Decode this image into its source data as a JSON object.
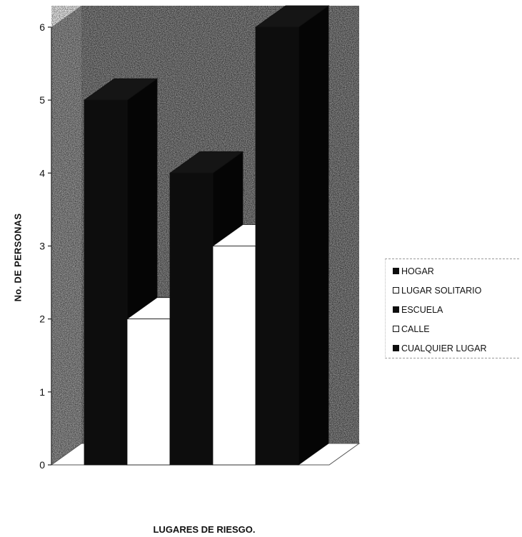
{
  "chart_data": {
    "type": "bar",
    "title": "",
    "xlabel": "LUGARES DE RIESGO.",
    "ylabel": "No. DE PERSONAS",
    "ylim": [
      0,
      6
    ],
    "yticks": [
      "0",
      "1",
      "2",
      "3",
      "4",
      "5",
      "6"
    ],
    "three_d": true,
    "grid": false,
    "legend_position": "right",
    "series": [
      {
        "name": "HOGAR",
        "values": [
          5
        ],
        "color": "#0d0d0d"
      },
      {
        "name": "LUGAR SOLITARIO",
        "values": [
          2
        ],
        "color": "#ffffff"
      },
      {
        "name": "ESCUELA",
        "values": [
          4
        ],
        "color": "#0d0d0d"
      },
      {
        "name": "CALLE",
        "values": [
          3
        ],
        "color": "#ffffff"
      },
      {
        "name": "CUALQUIER LUGAR",
        "values": [
          6
        ],
        "color": "#0d0d0d"
      }
    ]
  }
}
